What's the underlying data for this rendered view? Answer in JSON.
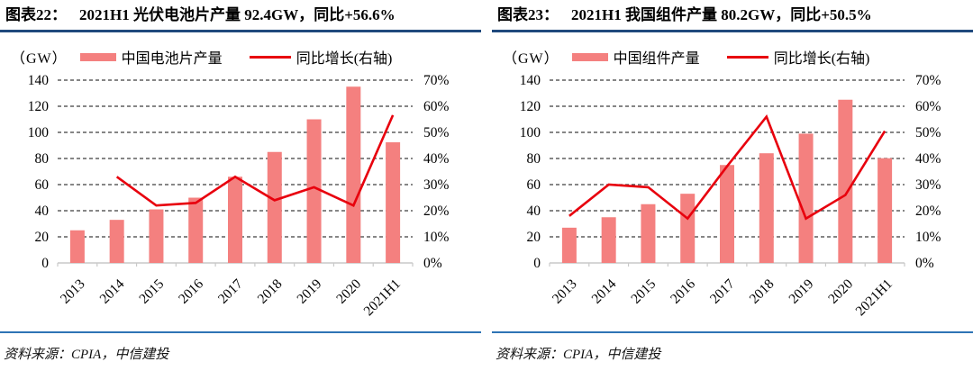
{
  "colors": {
    "bar": "#f4807f",
    "line": "#e8000d",
    "title_rule": "#1f497d",
    "footer_rule": "#2e74b5",
    "grid": "#3f3f3f",
    "axis_line": "#c9c9c9",
    "text": "#000000"
  },
  "panels": [
    {
      "caption_label": "图表22：",
      "caption_text": "2021H1 光伏电池片产量 92.4GW，同比+56.6%",
      "unit_label": "（GW）",
      "legend": [
        {
          "type": "bar",
          "label": "中国电池片产量"
        },
        {
          "type": "line",
          "label": "同比增长(右轴)"
        }
      ],
      "source": "资料来源：CPIA，中信建投"
    },
    {
      "caption_label": "图表23：",
      "caption_text": "2021H1 我国组件产量 80.2GW，同比+50.5%",
      "unit_label": "（GW）",
      "legend": [
        {
          "type": "bar",
          "label": "中国组件产量"
        },
        {
          "type": "line",
          "label": "同比增长(右轴)"
        }
      ],
      "source": "资料来源：CPIA，中信建投"
    }
  ],
  "chart_data": [
    {
      "type": "bar",
      "title": "2021H1 光伏电池片产量 92.4GW，同比+56.6%",
      "categories": [
        "2013",
        "2014",
        "2015",
        "2016",
        "2017",
        "2018",
        "2019",
        "2020",
        "2021H1"
      ],
      "series": [
        {
          "name": "中国电池片产量",
          "type": "bar",
          "axis": "left",
          "unit": "GW",
          "values": [
            25,
            33,
            41,
            50,
            66,
            85,
            110,
            135,
            92.4
          ]
        },
        {
          "name": "同比增长(右轴)",
          "type": "line",
          "axis": "right",
          "unit": "%",
          "values": [
            null,
            33,
            22,
            23,
            33,
            24,
            29,
            22,
            56.6
          ]
        }
      ],
      "left_axis": {
        "label": "（GW）",
        "min": 0,
        "max": 140,
        "step": 20
      },
      "right_axis": {
        "min": 0,
        "max": 70,
        "step": 10,
        "suffix": "%"
      },
      "grid": "horizontal-dashed",
      "legend_position": "top"
    },
    {
      "type": "bar",
      "title": "2021H1 我国组件产量 80.2GW，同比+50.5%",
      "categories": [
        "2013",
        "2014",
        "2015",
        "2016",
        "2017",
        "2018",
        "2019",
        "2020",
        "2021H1"
      ],
      "series": [
        {
          "name": "中国组件产量",
          "type": "bar",
          "axis": "left",
          "unit": "GW",
          "values": [
            27,
            35,
            45,
            53,
            75,
            84,
            99,
            125,
            80.2
          ]
        },
        {
          "name": "同比增长(右轴)",
          "type": "line",
          "axis": "right",
          "unit": "%",
          "values": [
            18,
            30,
            29,
            17,
            37,
            56,
            17,
            26,
            50.5
          ]
        }
      ],
      "left_axis": {
        "label": "（GW）",
        "min": 0,
        "max": 140,
        "step": 20
      },
      "right_axis": {
        "min": 0,
        "max": 70,
        "step": 10,
        "suffix": "%"
      },
      "grid": "horizontal-dashed",
      "legend_position": "top"
    }
  ]
}
